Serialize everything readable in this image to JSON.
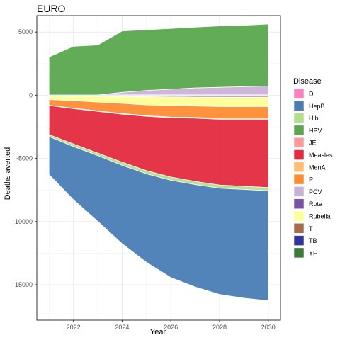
{
  "chart_data": {
    "type": "area",
    "title": "EURO",
    "xlabel": "Year",
    "ylabel": "Deaths averted",
    "x": [
      2021,
      2022,
      2023,
      2024,
      2025,
      2026,
      2027,
      2028,
      2029,
      2030
    ],
    "x_ticks": [
      2022,
      2024,
      2026,
      2028,
      2030
    ],
    "y_ticks": [
      5000,
      0,
      -5000,
      -10000,
      -15000
    ],
    "xlim": [
      2020.5,
      2030.5
    ],
    "ylim": [
      -17800,
      6300
    ],
    "grid": true,
    "legend_title": "Disease",
    "legend_position": "right",
    "legend": [
      {
        "name": "D",
        "color": "#FF7FBF"
      },
      {
        "name": "HepB",
        "color": "#4A7DB5"
      },
      {
        "name": "Hib",
        "color": "#B2DF8A"
      },
      {
        "name": "HPV",
        "color": "#5AA64E"
      },
      {
        "name": "JE",
        "color": "#FB9A99"
      },
      {
        "name": "Measles",
        "color": "#E32A3F"
      },
      {
        "name": "MenA",
        "color": "#FDBF6F"
      },
      {
        "name": "P",
        "color": "#FF8C33"
      },
      {
        "name": "PCV",
        "color": "#CAB2D6"
      },
      {
        "name": "Rota",
        "color": "#7B52A6"
      },
      {
        "name": "Rubella",
        "color": "#FFFF99"
      },
      {
        "name": "T",
        "color": "#A6694A"
      },
      {
        "name": "TB",
        "color": "#33339E"
      },
      {
        "name": "YF",
        "color": "#3B7A37"
      }
    ],
    "positive_stack": [
      {
        "name": "T",
        "color": "#A6694A",
        "values": [
          0,
          0,
          0,
          0,
          0,
          0,
          0,
          0,
          0,
          0
        ]
      },
      {
        "name": "Rota",
        "color": "#7B52A6",
        "values": [
          20,
          20,
          20,
          30,
          30,
          30,
          30,
          30,
          30,
          30
        ]
      },
      {
        "name": "PCV",
        "color": "#CAB2D6",
        "values": [
          0,
          0,
          0,
          200,
          350,
          450,
          550,
          600,
          650,
          700
        ]
      },
      {
        "name": "HPV",
        "color": "#5AA64E",
        "values": [
          3000,
          3850,
          3950,
          4850,
          4800,
          4800,
          4800,
          4850,
          4850,
          4900
        ]
      }
    ],
    "negative_stack": [
      {
        "name": "TB",
        "color": "#33339E",
        "values": [
          -50,
          -50,
          -50,
          -50,
          -50,
          -50,
          -50,
          -50,
          -50,
          -50
        ]
      },
      {
        "name": "Rota",
        "color": "#7B52A6",
        "values": [
          -20,
          -30,
          -40,
          -50,
          -70,
          -80,
          -90,
          -100,
          -100,
          -100
        ]
      },
      {
        "name": "Rubella",
        "color": "#FFFF99",
        "values": [
          -280,
          -350,
          -450,
          -550,
          -650,
          -700,
          -720,
          -750,
          -750,
          -750
        ]
      },
      {
        "name": "P",
        "color": "#FF8C33",
        "values": [
          -450,
          -600,
          -700,
          -800,
          -850,
          -900,
          -900,
          -950,
          -950,
          -950
        ]
      },
      {
        "name": "MenA",
        "color": "#FDBF6F",
        "values": [
          -20,
          -30,
          -40,
          -50,
          -50,
          -50,
          -60,
          -60,
          -60,
          -60
        ]
      },
      {
        "name": "Measles",
        "color": "#E32A3F",
        "values": [
          -2300,
          -2800,
          -3300,
          -3800,
          -4300,
          -4700,
          -5000,
          -5200,
          -5300,
          -5400
        ]
      },
      {
        "name": "Hib",
        "color": "#B2DF8A",
        "values": [
          -150,
          -200,
          -200,
          -250,
          -250,
          -250,
          -250,
          -250,
          -250,
          -250
        ]
      },
      {
        "name": "HepB",
        "color": "#4A7DB5",
        "values": [
          -3000,
          -4200,
          -5200,
          -6200,
          -7000,
          -7700,
          -8100,
          -8400,
          -8600,
          -8700
        ]
      }
    ]
  }
}
